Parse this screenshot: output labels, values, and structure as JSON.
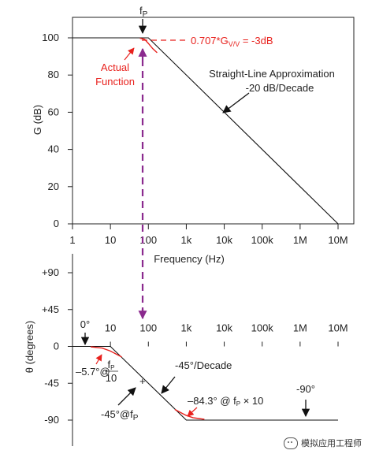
{
  "chart_data": [
    {
      "type": "line",
      "xscale": "log",
      "x_ticks": [
        1,
        10,
        100,
        1000,
        10000,
        100000,
        1000000,
        10000000
      ],
      "x_tick_labels": [
        "1",
        "10",
        "100",
        "1k",
        "10k",
        "100k",
        "1M",
        "10M"
      ],
      "xlabel": "Frequency (Hz)",
      "ylabel": "G (dB)",
      "ylim": [
        0,
        100
      ],
      "y_ticks": [
        0,
        20,
        40,
        60,
        80,
        100
      ],
      "y_tick_labels": [
        "0",
        "20",
        "40",
        "60",
        "80",
        "100"
      ],
      "series": [
        {
          "style": "black-straight",
          "x": [
            1,
            100,
            10000000
          ],
          "y": [
            100,
            100,
            0
          ]
        },
        {
          "style": "red-curve",
          "x": [
            60,
            80,
            100,
            130,
            170
          ],
          "y": [
            99.85,
            99.2,
            97,
            94.2,
            92
          ]
        }
      ],
      "annotations": {
        "fp_label": "f",
        "fp_sub": "P",
        "minus3db_prefix": "0.707*G",
        "minus3db_sub": "V/V",
        "minus3db_suffix": " = -3dB",
        "actual_line1": "Actual",
        "actual_line2": "Function",
        "straight_line1": "Straight-Line Approximation",
        "straight_line2": "-20 dB/Decade"
      }
    },
    {
      "type": "line",
      "xscale": "log",
      "x_ticks": [
        10,
        100,
        1000,
        10000,
        100000,
        1000000,
        10000000
      ],
      "x_tick_labels": [
        "10",
        "100",
        "1k",
        "10k",
        "100k",
        "1M",
        "10M"
      ],
      "ylabel": "θ (degrees)",
      "ylim": [
        -90,
        90
      ],
      "y_ticks": [
        90,
        45,
        0,
        -45,
        -90
      ],
      "y_tick_labels": [
        "+90",
        "+45",
        "0",
        "-45",
        "-90"
      ],
      "series": [
        {
          "style": "black-straight",
          "x": [
            1,
            10,
            1000,
            10000000
          ],
          "y": [
            0,
            0,
            -90,
            -90
          ]
        },
        {
          "style": "red-curve",
          "x": [
            3,
            6,
            10,
            20
          ],
          "y": [
            -0.5,
            -2,
            -5.7,
            -13
          ]
        },
        {
          "style": "red-curve",
          "x": [
            500,
            800,
            1000,
            1500,
            3000
          ],
          "y": [
            -77,
            -82,
            -84.3,
            -87,
            -89
          ]
        }
      ],
      "annotations": {
        "zero_deg": "0°",
        "minus57_prefix": "–5.7°@",
        "minus57_num": "f",
        "minus57_num_sub": "P",
        "minus57_den": "10",
        "per_decade": "-45°/Decade",
        "minus45_at": "-45°@f",
        "minus45_sub": "P",
        "minus843_prefix": "–84.3° @ f",
        "minus843_sub": "P",
        "minus843_suffix": " × 10",
        "minus90": "-90°"
      }
    }
  ],
  "watermark": {
    "text": "模拟应用工程师",
    "icon": "wechat-icon"
  }
}
